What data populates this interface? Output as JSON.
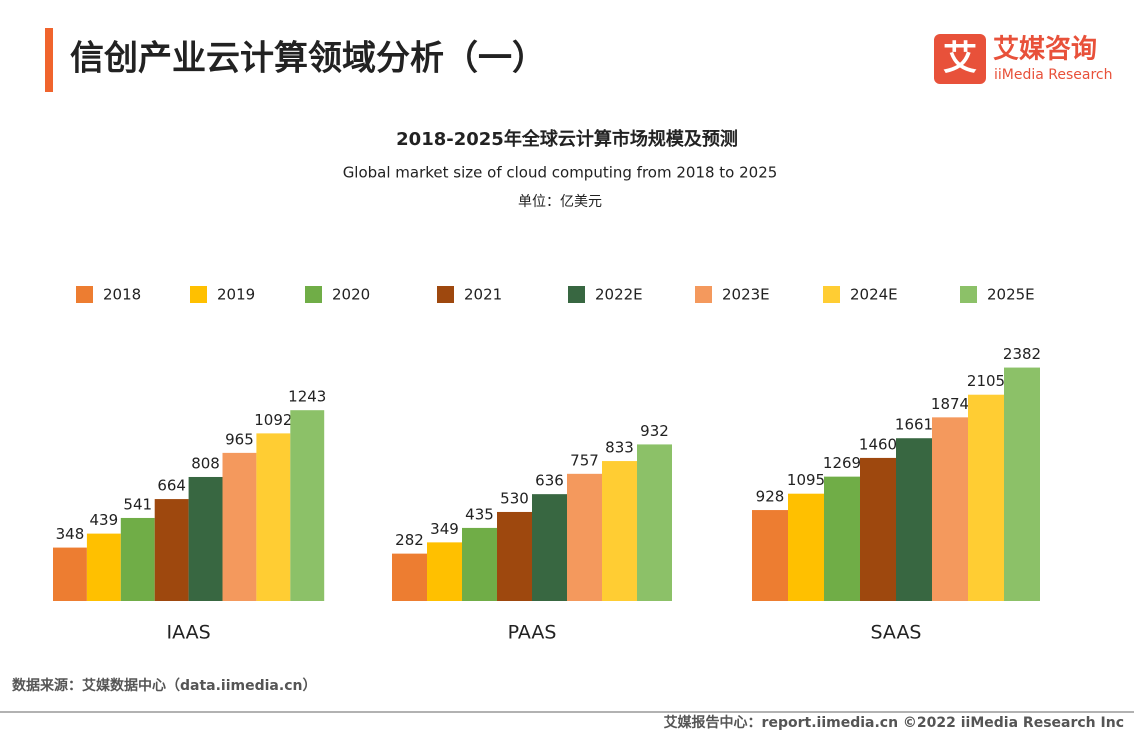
{
  "header": {
    "title": "信创产业云计算领域分析（一）",
    "logo_char": "艾",
    "brand_cn": "艾媒咨询",
    "brand_en": "iiMedia Research"
  },
  "chart_data": {
    "type": "bar",
    "title": "2018-2025年全球云计算市场规模及预测",
    "subtitle": "Global market size of cloud computing from 2018 to 2025",
    "unit": "单位：亿美元",
    "categories": [
      "IAAS",
      "PAAS",
      "SAAS"
    ],
    "series": [
      {
        "name": "2018",
        "color": "#ED7D31",
        "values": [
          348,
          282,
          928
        ]
      },
      {
        "name": "2019",
        "color": "#FFC000",
        "values": [
          439,
          349,
          1095
        ]
      },
      {
        "name": "2020",
        "color": "#70AD47",
        "values": [
          541,
          435,
          1269
        ]
      },
      {
        "name": "2021",
        "color": "#9E480E",
        "values": [
          664,
          530,
          1460
        ]
      },
      {
        "name": "2022E",
        "color": "#386741",
        "values": [
          808,
          636,
          1661
        ]
      },
      {
        "name": "2023E",
        "color": "#F4995D",
        "values": [
          965,
          757,
          1874
        ]
      },
      {
        "name": "2024E",
        "color": "#FFCD33",
        "values": [
          1092,
          833,
          2105
        ]
      },
      {
        "name": "2025E",
        "color": "#8CC168",
        "values": [
          1243,
          932,
          2382
        ]
      }
    ]
  },
  "source": "数据来源：艾媒数据中心（data.iimedia.cn）",
  "footer": "艾媒报告中心：report.iimedia.cn  ©2022  iiMedia Research  Inc"
}
